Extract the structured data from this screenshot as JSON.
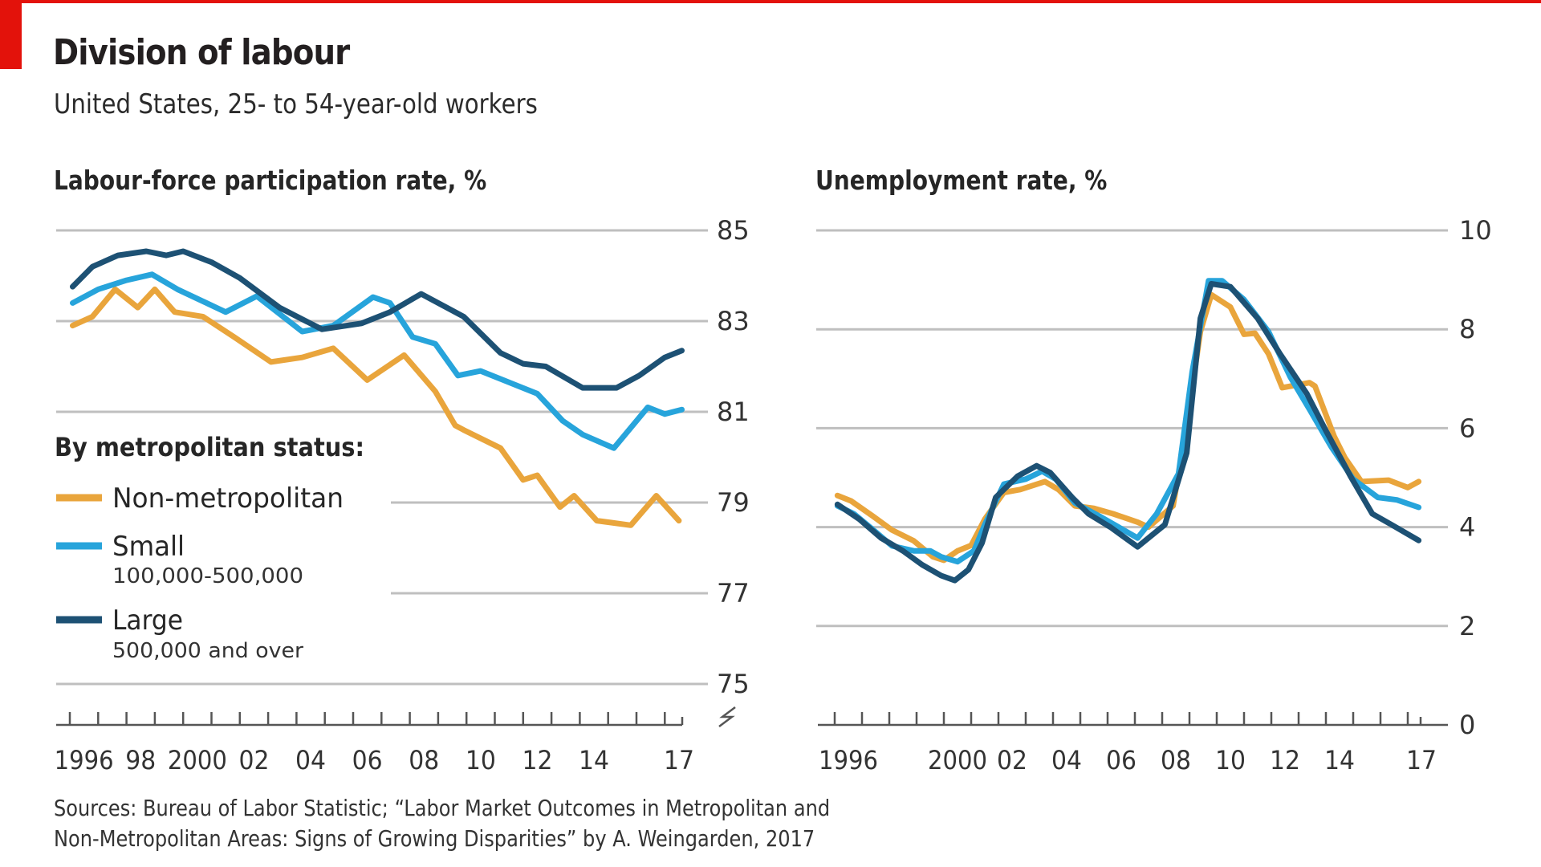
{
  "header": {
    "title": "Division of labour",
    "subtitle": "United States, 25- to 54-year-old workers"
  },
  "colors": {
    "accent_red": "#e3120b",
    "non_metropolitan": "#e9a53c",
    "small": "#27a4db",
    "large": "#1d5174",
    "grid": "#bfbfbf"
  },
  "footer": {
    "source_line1": "Sources: Bureau of Labor Statistic; “Labor Market Outcomes in Metropolitan and",
    "source_line2": "Non-Metropolitan Areas: Signs of Growing Disparities” by A. Weingarden, 2017"
  },
  "legend": {
    "heading": "By metropolitan status:",
    "items": [
      {
        "key": "non_metropolitan",
        "label": "Non-metropolitan",
        "sub": ""
      },
      {
        "key": "small",
        "label": "Small",
        "sub": "100,000-500,000"
      },
      {
        "key": "large",
        "label": "Large",
        "sub": "500,000 and over"
      }
    ]
  },
  "chart_data": [
    {
      "type": "line",
      "title": "Labour-force participation rate, %",
      "xlabel": "",
      "ylabel": "%",
      "ylim": [
        75,
        85
      ],
      "yticks": [
        75,
        77,
        79,
        81,
        83,
        85
      ],
      "ytick_labels": [
        "75",
        "77",
        "79",
        "81",
        "83",
        "85"
      ],
      "axis_break": true,
      "xlim": [
        1996,
        2017.6
      ],
      "xtick_years": [
        1996,
        1997,
        1998,
        1999,
        2000,
        2001,
        2002,
        2003,
        2004,
        2005,
        2006,
        2007,
        2008,
        2009,
        2010,
        2011,
        2012,
        2013,
        2014,
        2015,
        2016,
        2017
      ],
      "xtick_labels": [
        {
          "year": 1996,
          "label": "1996"
        },
        {
          "year": 1998,
          "label": "98"
        },
        {
          "year": 2000,
          "label": "2000"
        },
        {
          "year": 2002,
          "label": "02"
        },
        {
          "year": 2004,
          "label": "04"
        },
        {
          "year": 2006,
          "label": "06"
        },
        {
          "year": 2008,
          "label": "08"
        },
        {
          "year": 2010,
          "label": "10"
        },
        {
          "year": 2012,
          "label": "12"
        },
        {
          "year": 2014,
          "label": "14"
        },
        {
          "year": 2017,
          "label": "17"
        }
      ],
      "grid": true,
      "legend": "left-middle",
      "series": [
        {
          "name": "Non-metropolitan",
          "key": "non_metropolitan",
          "x": [
            1996.1,
            1996.8,
            1997.6,
            1998.4,
            1999.0,
            1999.7,
            2000.7,
            2001.8,
            2003.1,
            2004.2,
            2005.3,
            2006.5,
            2007.8,
            2008.9,
            2009.6,
            2009.9,
            2011.2,
            2012.0,
            2012.5,
            2013.3,
            2013.8,
            2014.6,
            2015.8,
            2016.7,
            2017.5
          ],
          "y": [
            82.9,
            83.1,
            83.7,
            83.3,
            83.7,
            83.2,
            83.1,
            82.65,
            82.1,
            82.2,
            82.4,
            81.7,
            82.25,
            81.45,
            80.7,
            80.6,
            80.2,
            79.5,
            79.6,
            78.9,
            79.15,
            78.6,
            78.5,
            79.15,
            78.6
          ]
        },
        {
          "name": "Small (100,000-500,000)",
          "key": "small",
          "x": [
            1996.1,
            1997.0,
            1998.0,
            1998.9,
            1999.8,
            2001.5,
            2002.6,
            2004.2,
            2005.3,
            2006.7,
            2007.3,
            2008.1,
            2008.9,
            2009.7,
            2010.5,
            2012.5,
            2013.4,
            2014.1,
            2015.2,
            2016.4,
            2017.0,
            2017.6
          ],
          "y": [
            83.4,
            83.7,
            83.9,
            84.03,
            83.7,
            83.2,
            83.55,
            82.77,
            82.9,
            83.53,
            83.4,
            82.65,
            82.5,
            81.8,
            81.9,
            81.4,
            80.8,
            80.5,
            80.2,
            81.1,
            80.95,
            81.05
          ]
        },
        {
          "name": "Large (500,000 and over)",
          "key": "large",
          "x": [
            1996.1,
            1996.8,
            1997.7,
            1998.7,
            1999.4,
            2000.0,
            2001.0,
            2002.0,
            2003.4,
            2004.9,
            2006.3,
            2007.3,
            2008.4,
            2009.9,
            2011.2,
            2012.0,
            2012.8,
            2014.1,
            2015.3,
            2016.1,
            2017.0,
            2017.6
          ],
          "y": [
            83.76,
            84.2,
            84.45,
            84.54,
            84.45,
            84.54,
            84.3,
            83.95,
            83.3,
            82.82,
            82.95,
            83.2,
            83.6,
            83.1,
            82.3,
            82.06,
            82.0,
            81.53,
            81.53,
            81.8,
            82.2,
            82.35
          ]
        }
      ]
    },
    {
      "type": "line",
      "title": "Unemployment rate, %",
      "xlabel": "",
      "ylabel": "%",
      "ylim": [
        0,
        10
      ],
      "yticks": [
        0,
        2,
        4,
        6,
        8,
        10
      ],
      "ytick_labels": [
        "0",
        "2",
        "4",
        "6",
        "8",
        "10"
      ],
      "xlim": [
        1996,
        2017.6
      ],
      "xtick_years": [
        1996,
        1997,
        1998,
        1999,
        2000,
        2001,
        2002,
        2003,
        2004,
        2005,
        2006,
        2007,
        2008,
        2009,
        2010,
        2011,
        2012,
        2013,
        2014,
        2015,
        2016,
        2017
      ],
      "xtick_labels": [
        {
          "year": 1996,
          "label": "1996"
        },
        {
          "year": 2000,
          "label": "2000"
        },
        {
          "year": 2002,
          "label": "02"
        },
        {
          "year": 2004,
          "label": "04"
        },
        {
          "year": 2006,
          "label": "06"
        },
        {
          "year": 2008,
          "label": "08"
        },
        {
          "year": 2010,
          "label": "10"
        },
        {
          "year": 2012,
          "label": "12"
        },
        {
          "year": 2014,
          "label": "14"
        },
        {
          "year": 2017,
          "label": "17"
        }
      ],
      "grid": true,
      "series": [
        {
          "name": "Non-metropolitan",
          "key": "non_metropolitan",
          "x": [
            1996.1,
            1996.6,
            1997.4,
            1998.1,
            1998.9,
            1999.6,
            2000.0,
            2000.5,
            2001.0,
            2001.5,
            2002.2,
            2002.8,
            2003.7,
            2004.2,
            2004.8,
            2005.5,
            2006.2,
            2007.1,
            2007.5,
            2008.4,
            2008.9,
            2009.4,
            2009.8,
            2010.5,
            2011.0,
            2011.4,
            2011.9,
            2012.4,
            2013.4,
            2013.6,
            2014.3,
            2014.7,
            2015.3,
            2016.3,
            2017.0,
            2017.4
          ],
          "y": [
            4.64,
            4.53,
            4.22,
            3.94,
            3.72,
            3.4,
            3.33,
            3.52,
            3.63,
            4.16,
            4.7,
            4.76,
            4.92,
            4.76,
            4.43,
            4.38,
            4.27,
            4.1,
            4.0,
            4.43,
            6.05,
            7.95,
            8.7,
            8.45,
            7.9,
            7.92,
            7.5,
            6.82,
            6.92,
            6.85,
            5.84,
            5.4,
            4.92,
            4.95,
            4.8,
            4.92
          ]
        },
        {
          "name": "Small (100,000-500,000)",
          "key": "small",
          "x": [
            1996.1,
            1996.7,
            1997.4,
            1998.1,
            1998.9,
            1999.5,
            1999.9,
            2000.5,
            2001.1,
            2001.5,
            2002.2,
            2003.0,
            2003.6,
            2004.1,
            2004.8,
            2005.7,
            2006.4,
            2007.1,
            2007.8,
            2008.6,
            2009.1,
            2009.7,
            2010.2,
            2011.0,
            2011.9,
            2012.7,
            2013.4,
            2014.2,
            2015.0,
            2015.9,
            2016.6,
            2017.4
          ],
          "y": [
            4.43,
            4.27,
            3.95,
            3.62,
            3.52,
            3.52,
            3.4,
            3.3,
            3.52,
            4.05,
            4.87,
            4.97,
            5.13,
            4.97,
            4.49,
            4.22,
            4.0,
            3.78,
            4.27,
            5.08,
            7.14,
            8.98,
            8.98,
            8.6,
            7.95,
            7.03,
            6.38,
            5.62,
            4.97,
            4.6,
            4.55,
            4.4
          ]
        },
        {
          "name": "Large (500,000 and over)",
          "key": "large",
          "x": [
            1996.1,
            1996.9,
            1997.7,
            1998.5,
            1999.2,
            1999.9,
            2000.4,
            2000.9,
            2001.4,
            2001.9,
            2002.7,
            2003.4,
            2003.9,
            2004.7,
            2005.3,
            2006.1,
            2007.1,
            2008.1,
            2008.9,
            2009.4,
            2009.8,
            2010.5,
            2011.5,
            2012.3,
            2013.3,
            2014.0,
            2014.9,
            2015.7,
            2016.4,
            2017.4
          ],
          "y": [
            4.46,
            4.16,
            3.78,
            3.52,
            3.24,
            3.02,
            2.92,
            3.14,
            3.68,
            4.6,
            5.03,
            5.24,
            5.1,
            4.6,
            4.27,
            4.0,
            3.6,
            4.05,
            5.5,
            8.22,
            8.92,
            8.86,
            8.22,
            7.52,
            6.7,
            5.95,
            5.03,
            4.27,
            4.05,
            3.73
          ]
        }
      ]
    }
  ]
}
